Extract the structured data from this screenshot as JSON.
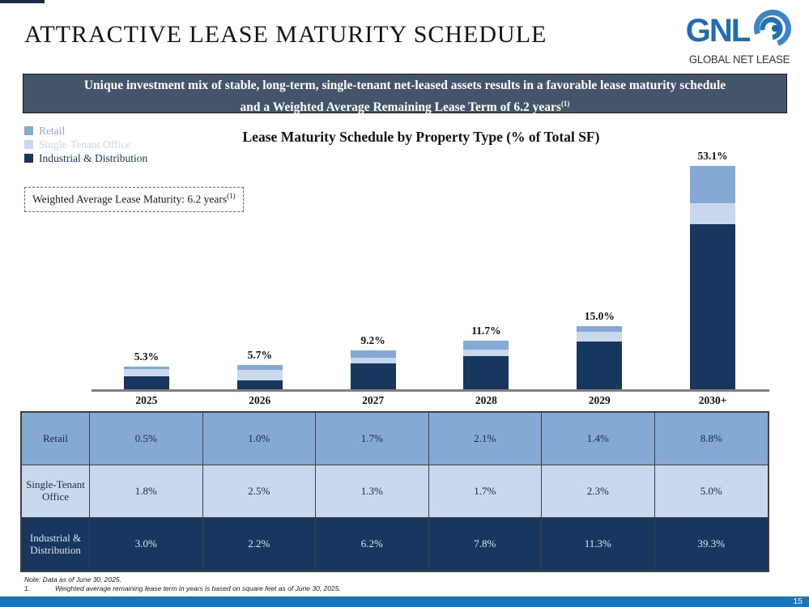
{
  "slide": {
    "title": "ATTRACTIVE LEASE MATURITY SCHEDULE",
    "page_number": "15"
  },
  "logo": {
    "acronym": "GNL",
    "name": "GLOBAL NET LEASE",
    "icon": "globe-swirl-icon",
    "brand_blue": "#1F6CB5"
  },
  "banner": {
    "line1": "Unique investment mix of stable, long-term, single-tenant net-leased assets results in a favorable lease maturity schedule",
    "line2": "and a Weighted Average Remaining Lease Term of 6.2 years",
    "footnote_marker": "(1)",
    "bg_color": "#44546A"
  },
  "chart": {
    "title": "Lease Maturity Schedule by Property Type (% of Total SF)",
    "callout_text": "Weighted Average Lease Maturity: 6.2 years",
    "callout_marker": "(1)",
    "legend": [
      {
        "label": "Retail",
        "swatch_color": "#84A9D4",
        "text_color": "#8FA6C6"
      },
      {
        "label": "Single-Tenant Office",
        "swatch_color": "#C9D8EC",
        "text_color": "#C9D8EC"
      },
      {
        "label": "Industrial & Distribution",
        "swatch_color": "#17375E",
        "text_color": "#17375E"
      }
    ]
  },
  "chart_data": {
    "type": "bar",
    "stacked": true,
    "title": "Lease Maturity Schedule by Property Type (% of Total SF)",
    "categories": [
      "2025",
      "2026",
      "2027",
      "2028",
      "2029",
      "2030+"
    ],
    "series": [
      {
        "name": "Industrial & Distribution",
        "color": "#17375E",
        "values": [
          3.0,
          2.2,
          6.2,
          7.8,
          11.3,
          39.3
        ]
      },
      {
        "name": "Single-Tenant Office",
        "color": "#C9D8EC",
        "values": [
          1.8,
          2.5,
          1.3,
          1.7,
          2.3,
          5.0
        ]
      },
      {
        "name": "Retail",
        "color": "#84A9D4",
        "values": [
          0.5,
          1.0,
          1.7,
          2.1,
          1.4,
          8.8
        ]
      }
    ],
    "totals": [
      "5.3%",
      "5.7%",
      "9.2%",
      "11.7%",
      "15.0%",
      "53.1%"
    ],
    "xlabel": "",
    "ylabel": "% of Total SF",
    "ylim": [
      0,
      55
    ],
    "grid": false,
    "legend_position": "top-left",
    "annotations": [
      "Weighted Average Lease Maturity: 6.2 years(1)"
    ]
  },
  "table": {
    "columns": [
      "2025",
      "2026",
      "2027",
      "2028",
      "2029",
      "2030+"
    ],
    "rows": [
      {
        "label": "Retail",
        "bg": "#84A9D4",
        "text": "#1B2A4A",
        "values": [
          "0.5%",
          "1.0%",
          "1.7%",
          "2.1%",
          "1.4%",
          "8.8%"
        ]
      },
      {
        "label": "Single-Tenant Office",
        "bg": "#C9D8EC",
        "text": "#1B2A4A",
        "values": [
          "1.8%",
          "2.5%",
          "1.3%",
          "1.7%",
          "2.3%",
          "5.0%"
        ]
      },
      {
        "label": "Industrial & Distribution",
        "bg": "#17375E",
        "text": "#D9E5F2",
        "values": [
          "3.0%",
          "2.2%",
          "6.2%",
          "7.8%",
          "11.3%",
          "39.3%"
        ]
      }
    ]
  },
  "footnotes": {
    "note": "Note: Data as of June 30, 2025.",
    "item1_number": "1.",
    "item1_text": "Weighted average remaining lease term in years is based on square feet as of June 30, 2025."
  }
}
